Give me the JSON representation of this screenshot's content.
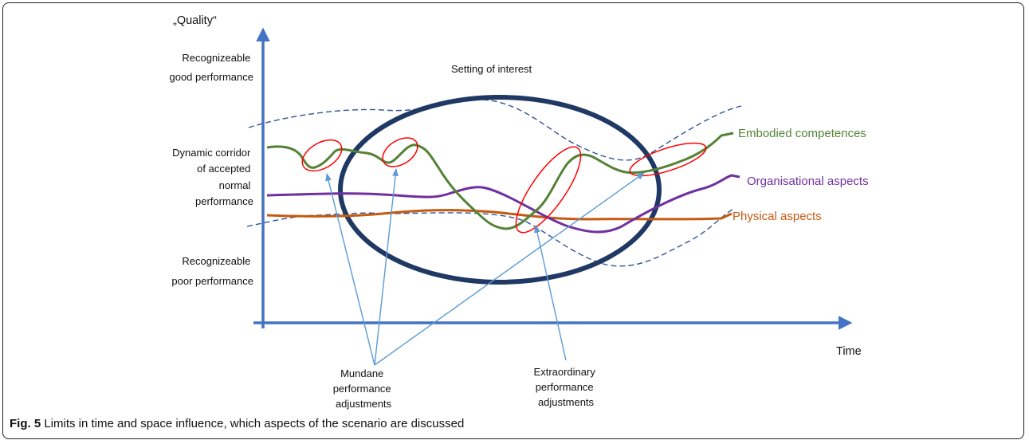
{
  "y_axis_title": "„Quality“",
  "x_axis_title": "Time",
  "band_labels": {
    "good": [
      "Recognizeable",
      "good performance"
    ],
    "corridor": [
      "Dynamic corridor",
      "of accepted",
      "normal",
      "performance"
    ],
    "poor": [
      "Recognizeable",
      "poor performance"
    ]
  },
  "setting_label": "Setting of interest",
  "series": [
    {
      "name": "Embodied competences",
      "color": "#548235"
    },
    {
      "name": "Organisational aspects",
      "color": "#7030a0"
    },
    {
      "name": "Physical aspects",
      "color": "#c55a11"
    }
  ],
  "callouts": {
    "mundane": [
      "Mundane",
      "performance",
      "adjustments"
    ],
    "extraordinary": [
      "Extraordinary",
      "performance",
      "adjustments"
    ]
  },
  "colors": {
    "axis": "#4472c4",
    "corridor": "#2f5597",
    "ellipse": "#203864",
    "highlight": "#ff0000",
    "arrow": "#5b9bd5"
  },
  "caption": {
    "label": "Fig. 5",
    "text": " Limits in time and space influence, which aspects of the scenario are discussed"
  }
}
